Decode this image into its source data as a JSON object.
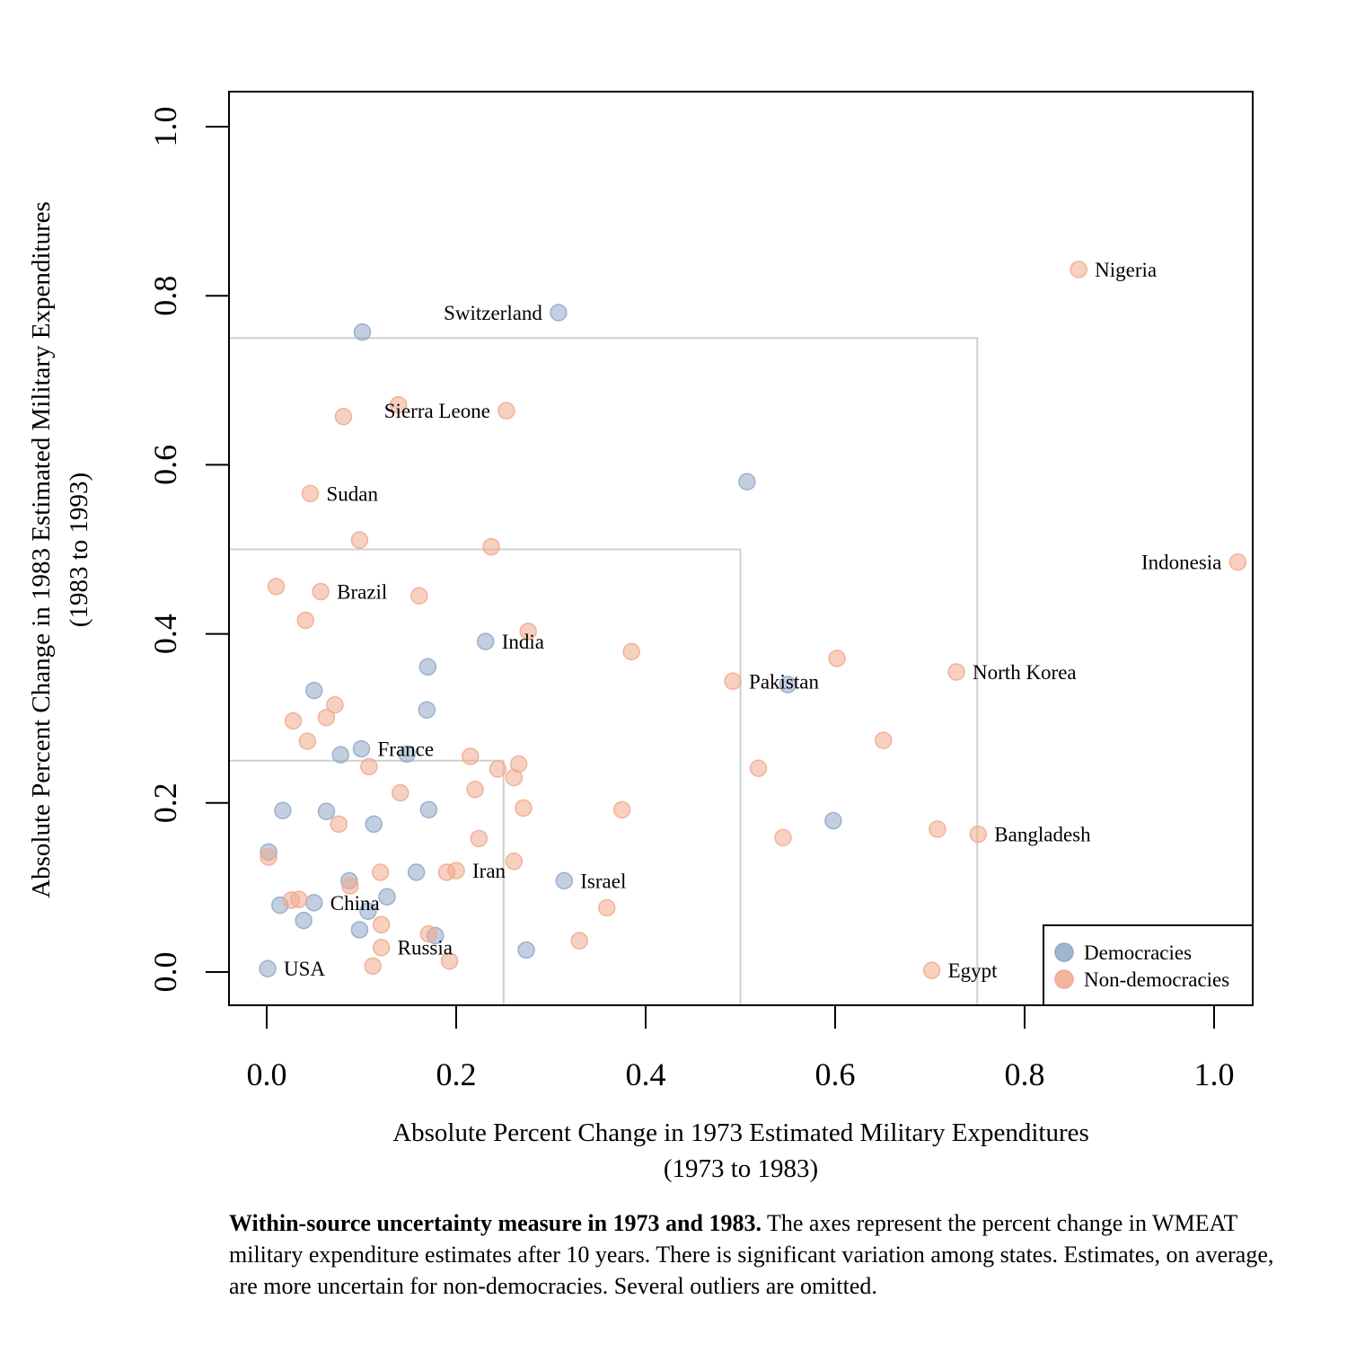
{
  "chart_data": {
    "type": "scatter",
    "xlabel": [
      "Absolute Percent Change in 1973 Estimated Military Expenditures",
      "(1973 to 1983)"
    ],
    "ylabel": [
      "Absolute Percent Change in 1983 Estimated Military Expenditures",
      "(1983 to 1993)"
    ],
    "xlim": [
      -0.04,
      1.04
    ],
    "ylim": [
      -0.04,
      1.04
    ],
    "x_ticks": [
      0.0,
      0.2,
      0.4,
      0.6,
      0.8,
      1.0
    ],
    "y_ticks": [
      0.0,
      0.2,
      0.4,
      0.6,
      0.8,
      1.0
    ],
    "x_tick_labels": [
      "0.0",
      "0.2",
      "0.4",
      "0.6",
      "0.8",
      "1.0"
    ],
    "y_tick_labels": [
      "0.0",
      "0.2",
      "0.4",
      "0.6",
      "0.8",
      "1.0"
    ],
    "reference_boxes": [
      0.25,
      0.5,
      0.75
    ],
    "legend": {
      "position": "bottom-right",
      "entries": [
        {
          "label": "Democracies",
          "series": "democracies"
        },
        {
          "label": "Non-democracies",
          "series": "nondemocracies"
        }
      ]
    },
    "series": [
      {
        "name": "Democracies",
        "key": "democracies",
        "color": "#8fa8c8",
        "points": [
          {
            "x": 0.308,
            "y": 0.78,
            "label": "Switzerland",
            "label_side": "left"
          },
          {
            "x": 0.101,
            "y": 0.757
          },
          {
            "x": 0.507,
            "y": 0.58
          },
          {
            "x": 0.231,
            "y": 0.391,
            "label": "India",
            "label_side": "right"
          },
          {
            "x": 0.17,
            "y": 0.361
          },
          {
            "x": 0.05,
            "y": 0.333
          },
          {
            "x": 0.169,
            "y": 0.31
          },
          {
            "x": 0.55,
            "y": 0.34
          },
          {
            "x": 0.1,
            "y": 0.264,
            "label": "France",
            "label_side": "right"
          },
          {
            "x": 0.078,
            "y": 0.257
          },
          {
            "x": 0.148,
            "y": 0.258
          },
          {
            "x": 0.017,
            "y": 0.191
          },
          {
            "x": 0.063,
            "y": 0.19
          },
          {
            "x": 0.171,
            "y": 0.192
          },
          {
            "x": 0.113,
            "y": 0.175
          },
          {
            "x": 0.598,
            "y": 0.179
          },
          {
            "x": 0.002,
            "y": 0.142
          },
          {
            "x": 0.158,
            "y": 0.118
          },
          {
            "x": 0.314,
            "y": 0.108,
            "label": "Israel",
            "label_side": "right"
          },
          {
            "x": 0.087,
            "y": 0.108
          },
          {
            "x": 0.127,
            "y": 0.089
          },
          {
            "x": 0.05,
            "y": 0.082,
            "label": "China",
            "label_side": "right"
          },
          {
            "x": 0.014,
            "y": 0.079
          },
          {
            "x": 0.107,
            "y": 0.072
          },
          {
            "x": 0.039,
            "y": 0.061
          },
          {
            "x": 0.098,
            "y": 0.05
          },
          {
            "x": 0.178,
            "y": 0.043
          },
          {
            "x": 0.274,
            "y": 0.026
          },
          {
            "x": 0.001,
            "y": 0.004,
            "label": "USA",
            "label_side": "right"
          }
        ]
      },
      {
        "name": "Non-democracies",
        "key": "nondemocracies",
        "color": "#f0a98d",
        "points": [
          {
            "x": 0.857,
            "y": 0.831,
            "label": "Nigeria",
            "label_side": "right"
          },
          {
            "x": 0.139,
            "y": 0.671
          },
          {
            "x": 0.081,
            "y": 0.657
          },
          {
            "x": 0.253,
            "y": 0.664,
            "label": "Sierra Leone",
            "label_side": "left"
          },
          {
            "x": 0.046,
            "y": 0.566,
            "label": "Sudan",
            "label_side": "right"
          },
          {
            "x": 0.098,
            "y": 0.511
          },
          {
            "x": 0.237,
            "y": 0.503
          },
          {
            "x": 1.025,
            "y": 0.485,
            "label": "Indonesia",
            "label_side": "left"
          },
          {
            "x": 0.01,
            "y": 0.456
          },
          {
            "x": 0.057,
            "y": 0.45,
            "label": "Brazil",
            "label_side": "right"
          },
          {
            "x": 0.161,
            "y": 0.445
          },
          {
            "x": 0.041,
            "y": 0.416
          },
          {
            "x": 0.276,
            "y": 0.403
          },
          {
            "x": 0.385,
            "y": 0.379
          },
          {
            "x": 0.602,
            "y": 0.371
          },
          {
            "x": 0.492,
            "y": 0.344,
            "label": "Pakistan",
            "label_side": "right"
          },
          {
            "x": 0.728,
            "y": 0.355,
            "label": "North Korea",
            "label_side": "right"
          },
          {
            "x": 0.072,
            "y": 0.316
          },
          {
            "x": 0.028,
            "y": 0.297
          },
          {
            "x": 0.063,
            "y": 0.301
          },
          {
            "x": 0.043,
            "y": 0.273
          },
          {
            "x": 0.651,
            "y": 0.274
          },
          {
            "x": 0.215,
            "y": 0.255
          },
          {
            "x": 0.266,
            "y": 0.246
          },
          {
            "x": 0.108,
            "y": 0.243
          },
          {
            "x": 0.244,
            "y": 0.24
          },
          {
            "x": 0.519,
            "y": 0.241
          },
          {
            "x": 0.261,
            "y": 0.23
          },
          {
            "x": 0.22,
            "y": 0.216
          },
          {
            "x": 0.141,
            "y": 0.212
          },
          {
            "x": 0.271,
            "y": 0.194
          },
          {
            "x": 0.375,
            "y": 0.192
          },
          {
            "x": 0.076,
            "y": 0.175
          },
          {
            "x": 0.708,
            "y": 0.169
          },
          {
            "x": 0.751,
            "y": 0.163,
            "label": "Bangladesh",
            "label_side": "right"
          },
          {
            "x": 0.224,
            "y": 0.158
          },
          {
            "x": 0.545,
            "y": 0.159
          },
          {
            "x": 0.002,
            "y": 0.136
          },
          {
            "x": 0.261,
            "y": 0.131
          },
          {
            "x": 0.12,
            "y": 0.118
          },
          {
            "x": 0.19,
            "y": 0.118
          },
          {
            "x": 0.2,
            "y": 0.12,
            "label": "Iran",
            "label_side": "right"
          },
          {
            "x": 0.088,
            "y": 0.102
          },
          {
            "x": 0.026,
            "y": 0.085
          },
          {
            "x": 0.034,
            "y": 0.086
          },
          {
            "x": 0.359,
            "y": 0.076
          },
          {
            "x": 0.121,
            "y": 0.056
          },
          {
            "x": 0.171,
            "y": 0.045
          },
          {
            "x": 0.33,
            "y": 0.037
          },
          {
            "x": 0.121,
            "y": 0.029,
            "label": "Russia",
            "label_side": "right"
          },
          {
            "x": 0.193,
            "y": 0.013
          },
          {
            "x": 0.112,
            "y": 0.007
          },
          {
            "x": 0.702,
            "y": 0.002,
            "label": "Egypt",
            "label_side": "right"
          }
        ]
      }
    ]
  },
  "caption": {
    "bold": "Within-source uncertainty measure in 1973 and 1983.",
    "text": " The axes represent the percent change in WMEAT military expenditure estimates after 10 years. There is significant variation among states. Estimates, on average, are more uncertain for non-democracies. Several outliers are omitted."
  }
}
